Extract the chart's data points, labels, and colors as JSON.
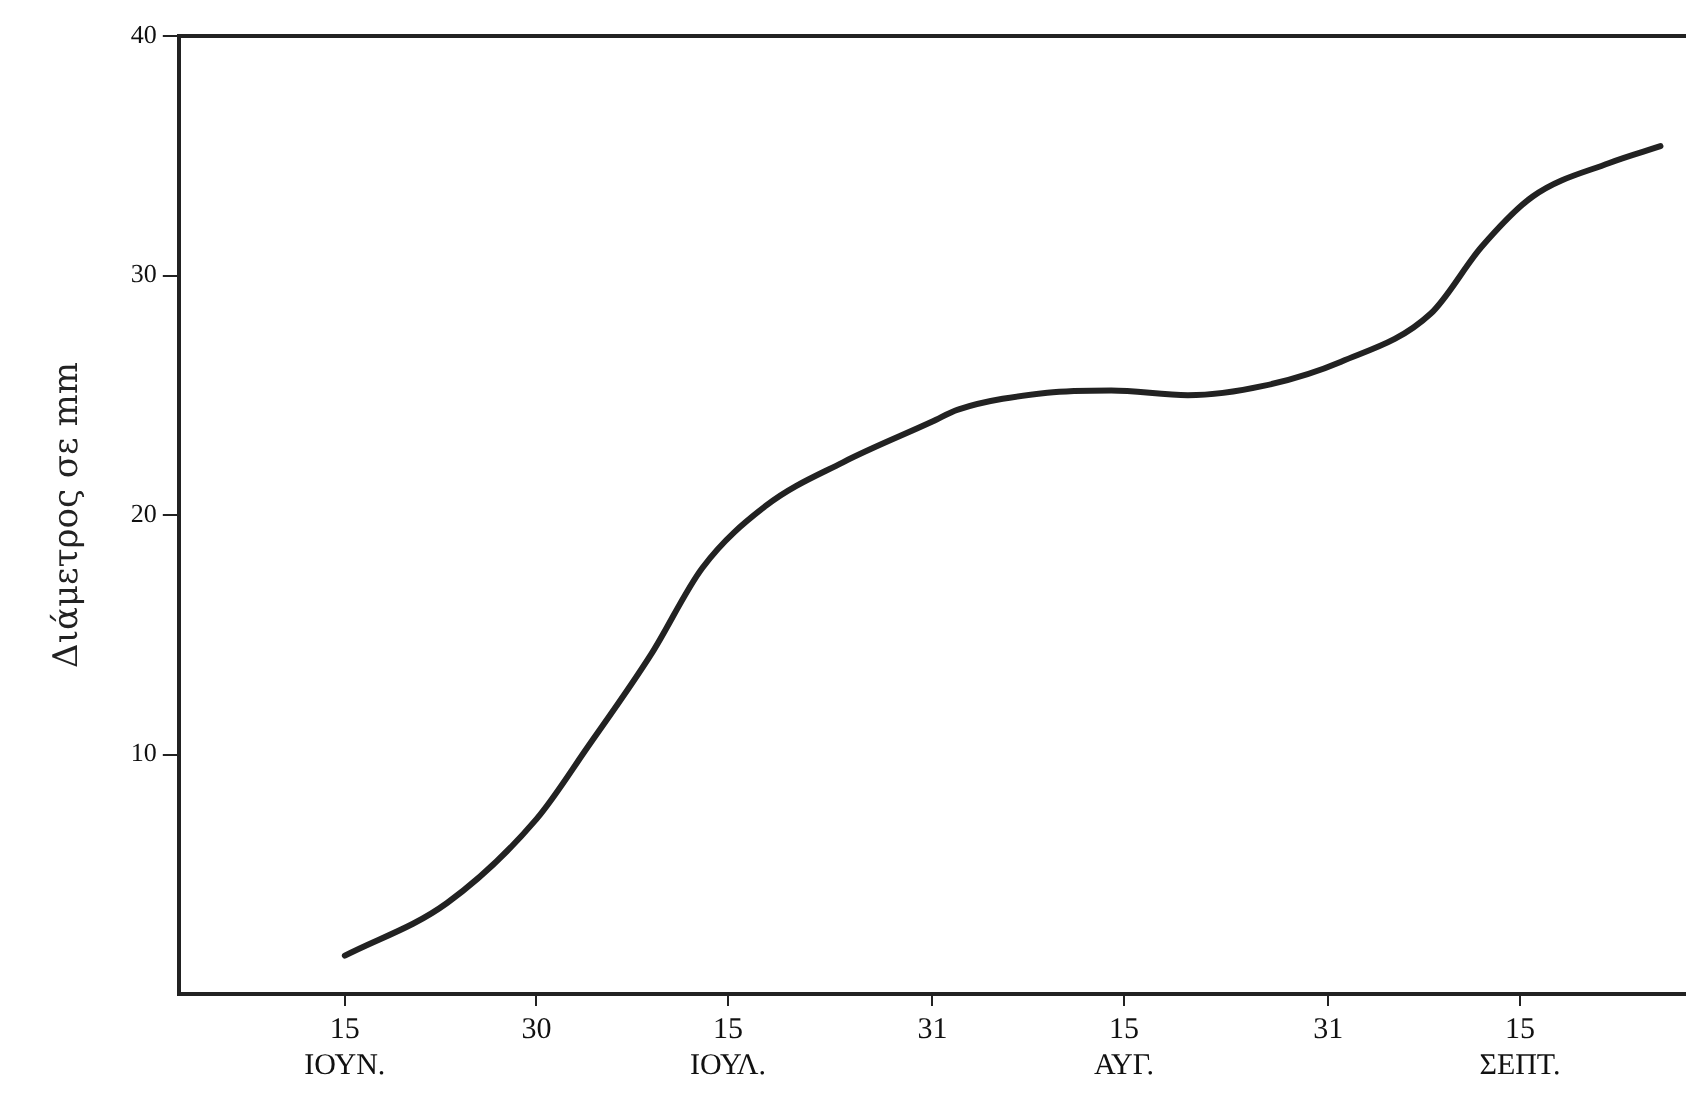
{
  "chart_data": {
    "type": "line",
    "ylabel": "Διάμετρος σε mm",
    "x": [
      "--06-15",
      "--06-23",
      "--06-30",
      "--07-04",
      "--07-09",
      "--07-13",
      "--07-18",
      "--07-24",
      "--07-31",
      "--08-02",
      "--08-09",
      "--08-14",
      "--08-20",
      "--08-26",
      "--09-01",
      "--09-08",
      "--09-12",
      "--09-16",
      "--09-22",
      "--09-26"
    ],
    "series": [
      {
        "color": "#222222",
        "values": [
          1.6,
          3.8,
          7.3,
          10.3,
          14.2,
          17.8,
          20.4,
          22.2,
          23.9,
          24.4,
          25.1,
          25.2,
          25.0,
          25.4,
          26.4,
          28.4,
          31.2,
          33.3,
          34.7,
          35.4
        ]
      }
    ],
    "xlim": [
      "--06-02",
      "--09-28"
    ],
    "xticks": [
      {
        "value": "--06-15",
        "label": "15\nΙΟΥΝ."
      },
      {
        "value": "--06-30",
        "label": "30"
      },
      {
        "value": "--07-15",
        "label": "15\nΙΟΥΛ."
      },
      {
        "value": "--07-31",
        "label": "31"
      },
      {
        "value": "--08-15",
        "label": "15\nΑΥΓ."
      },
      {
        "value": "--08-31",
        "label": "31"
      },
      {
        "value": "--09-15",
        "label": "15\nΣΕΠΤ."
      }
    ],
    "ylim": [
      0,
      40
    ],
    "yticks": [
      10,
      20,
      30,
      40
    ],
    "grid": false,
    "legend": false,
    "marker": "none",
    "line_style": "solid"
  }
}
